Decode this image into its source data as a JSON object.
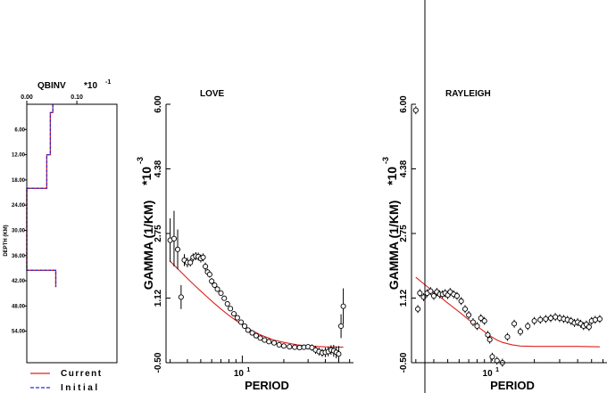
{
  "colors": {
    "current": "#e0201c",
    "initial": "#2b2bd8",
    "axis": "#000000",
    "data": "#000000"
  },
  "legend": {
    "current_label": "Current",
    "initial_label": "Initial"
  },
  "chart_data": [
    {
      "type": "line",
      "panel": "qbinv",
      "title": "QBINV",
      "multiplier_label": "*10",
      "multiplier_exp": "-1",
      "xlabel": "",
      "ylabel": "DEPTH (KM)",
      "xlim": [
        0.0,
        0.18
      ],
      "ylim": [
        0.0,
        61.5
      ],
      "xtick_labels": [
        "0.00",
        "0.10"
      ],
      "xticks": [
        0.0,
        0.1
      ],
      "ytick_labels": [
        "6.00",
        "12.00",
        "18.00",
        "24.00",
        "30.00",
        "36.00",
        "42.00",
        "48.00",
        "54.00"
      ],
      "yticks": [
        6,
        12,
        18,
        24,
        30,
        36,
        42,
        48,
        54
      ],
      "y_inverted": true,
      "series": [
        {
          "name": "Current",
          "style": "solid",
          "x": [
            0.052,
            0.052,
            0.047,
            0.047,
            0.04,
            0.04,
            0.0,
            0.0,
            0.058,
            0.058
          ],
          "y": [
            0.0,
            2.0,
            2.0,
            12.0,
            12.0,
            20.0,
            20.0,
            39.5,
            39.5,
            43.5
          ]
        },
        {
          "name": "Initial",
          "style": "dashed",
          "x": [
            0.052,
            0.052,
            0.047,
            0.047,
            0.04,
            0.04,
            0.0,
            0.0,
            0.058,
            0.058
          ],
          "y": [
            0.0,
            2.0,
            2.0,
            12.0,
            12.0,
            20.0,
            20.0,
            39.5,
            39.5,
            43.5
          ]
        }
      ]
    },
    {
      "type": "scatter",
      "panel": "love",
      "title": "LOVE",
      "xlabel": "PERIOD",
      "ylabel": "GAMMA (1/KM)",
      "multiplier_label": "*10",
      "multiplier_exp": "-3",
      "x_scale": "log",
      "xlim": [
        2.8,
        64
      ],
      "ylim": [
        -0.5,
        6.0
      ],
      "ytick_labels": [
        "-0.50",
        "1.12",
        "2.75",
        "4.38",
        "6.00"
      ],
      "yticks": [
        -0.5,
        1.125,
        2.75,
        4.375,
        6.0
      ],
      "xtick_label": "10",
      "xtick_label_exp": "1",
      "xtick_value": 10,
      "observed": {
        "x": [
          3.0,
          3.2,
          3.4,
          3.6,
          3.8,
          4.0,
          4.2,
          4.4,
          4.6,
          4.8,
          5.0,
          5.2,
          5.4,
          5.6,
          5.8,
          6.0,
          6.3,
          6.6,
          7.0,
          7.4,
          7.8,
          8.2,
          8.7,
          9.2,
          9.8,
          10.4,
          11.0,
          11.8,
          12.6,
          13.5,
          14.5,
          15.6,
          17.0,
          18.5,
          20.0,
          22.0,
          24.0,
          26.0,
          28.0,
          30.0,
          32.0,
          34.0,
          36.0,
          38.0,
          40.0,
          42.0,
          44.0,
          46.0,
          48.0,
          50.0,
          52.0,
          54.0
        ],
        "y": [
          2.58,
          2.62,
          2.35,
          1.15,
          2.08,
          2.02,
          2.02,
          2.15,
          2.18,
          2.17,
          2.12,
          2.15,
          1.92,
          1.78,
          1.72,
          1.55,
          1.45,
          1.35,
          1.25,
          1.12,
          0.98,
          0.86,
          0.73,
          0.63,
          0.52,
          0.42,
          0.32,
          0.25,
          0.18,
          0.12,
          0.07,
          0.03,
          0.0,
          -0.05,
          -0.08,
          -0.1,
          -0.11,
          -0.12,
          -0.11,
          -0.1,
          -0.12,
          -0.18,
          -0.22,
          -0.25,
          -0.24,
          -0.22,
          -0.18,
          -0.2,
          -0.24,
          -0.28,
          0.42,
          0.92
        ],
        "err": [
          0.55,
          0.7,
          0.5,
          0.3,
          0.15,
          0.12,
          0.1,
          0.1,
          0.1,
          0.1,
          0.1,
          0.1,
          0.1,
          0.08,
          0.08,
          0.08,
          0.07,
          0.07,
          0.06,
          0.06,
          0.06,
          0.05,
          0.05,
          0.05,
          0.05,
          0.05,
          0.05,
          0.05,
          0.05,
          0.05,
          0.05,
          0.05,
          0.05,
          0.05,
          0.05,
          0.05,
          0.05,
          0.05,
          0.05,
          0.05,
          0.08,
          0.1,
          0.1,
          0.1,
          0.12,
          0.12,
          0.12,
          0.15,
          0.15,
          0.2,
          0.3,
          0.45
        ]
      },
      "model": {
        "x": [
          3.0,
          3.5,
          4.0,
          4.5,
          5.0,
          5.5,
          6.0,
          7.0,
          8.0,
          9.0,
          10.0,
          12.0,
          14.0,
          17.0,
          20.0,
          25.0,
          30.0,
          40.0,
          54.0
        ],
        "y": [
          2.05,
          1.82,
          1.62,
          1.45,
          1.3,
          1.17,
          1.05,
          0.85,
          0.69,
          0.56,
          0.45,
          0.29,
          0.18,
          0.07,
          0.01,
          -0.05,
          -0.08,
          -0.1,
          -0.11
        ]
      }
    },
    {
      "type": "scatter",
      "panel": "rayleigh",
      "title": "RAYLEIGH",
      "xlabel": "PERIOD",
      "ylabel": "GAMMA (1/KM)",
      "multiplier_label": "*10",
      "multiplier_exp": "-3",
      "x_scale": "log",
      "xlim": [
        2.8,
        64
      ],
      "ylim": [
        -0.5,
        6.0
      ],
      "ytick_labels": [
        "-0.50",
        "1.12",
        "2.75",
        "4.38",
        "6.00"
      ],
      "yticks": [
        -0.5,
        1.125,
        2.75,
        4.375,
        6.0
      ],
      "xtick_label": "10",
      "xtick_label_exp": "1",
      "xtick_value": 10,
      "observed": {
        "x": [
          3.0,
          3.1,
          3.2,
          3.4,
          3.6,
          3.8,
          4.0,
          4.2,
          4.4,
          4.6,
          4.8,
          5.0,
          5.2,
          5.5,
          5.8,
          6.2,
          6.6,
          7.0,
          7.5,
          8.0,
          8.5,
          9.0,
          9.5,
          9.8,
          10.2,
          11.0,
          12.0,
          13.0,
          14.5,
          16.0,
          18.0,
          20.0,
          22.0,
          24.0,
          26.0,
          28.0,
          30.0,
          32.0,
          34.0,
          36.0,
          38.0,
          40.0,
          42.0,
          44.0,
          46.0,
          48.0,
          50.0,
          53.0,
          57.0
        ],
        "y": [
          5.85,
          0.85,
          1.25,
          1.15,
          1.25,
          1.3,
          1.18,
          1.28,
          1.22,
          1.22,
          1.25,
          1.2,
          1.28,
          1.22,
          1.18,
          1.05,
          0.85,
          0.7,
          0.52,
          0.42,
          0.62,
          0.55,
          0.2,
          0.08,
          -0.35,
          -0.45,
          -0.5,
          0.15,
          0.48,
          0.28,
          0.42,
          0.55,
          0.58,
          0.6,
          0.62,
          0.65,
          0.62,
          0.6,
          0.58,
          0.55,
          0.5,
          0.52,
          0.48,
          0.42,
          0.46,
          0.4,
          0.55,
          0.58,
          0.6
        ]
      },
      "model": {
        "x": [
          3.0,
          3.5,
          4.0,
          5.0,
          6.0,
          7.0,
          8.0,
          9.0,
          10.0,
          11.0,
          12.0,
          14.0,
          16.0,
          20.0,
          30.0,
          40.0,
          57.0
        ],
        "y": [
          1.65,
          1.45,
          1.28,
          1.0,
          0.78,
          0.58,
          0.42,
          0.28,
          0.16,
          0.07,
          0.01,
          -0.05,
          -0.08,
          -0.09,
          -0.09,
          -0.09,
          -0.1
        ]
      }
    }
  ]
}
